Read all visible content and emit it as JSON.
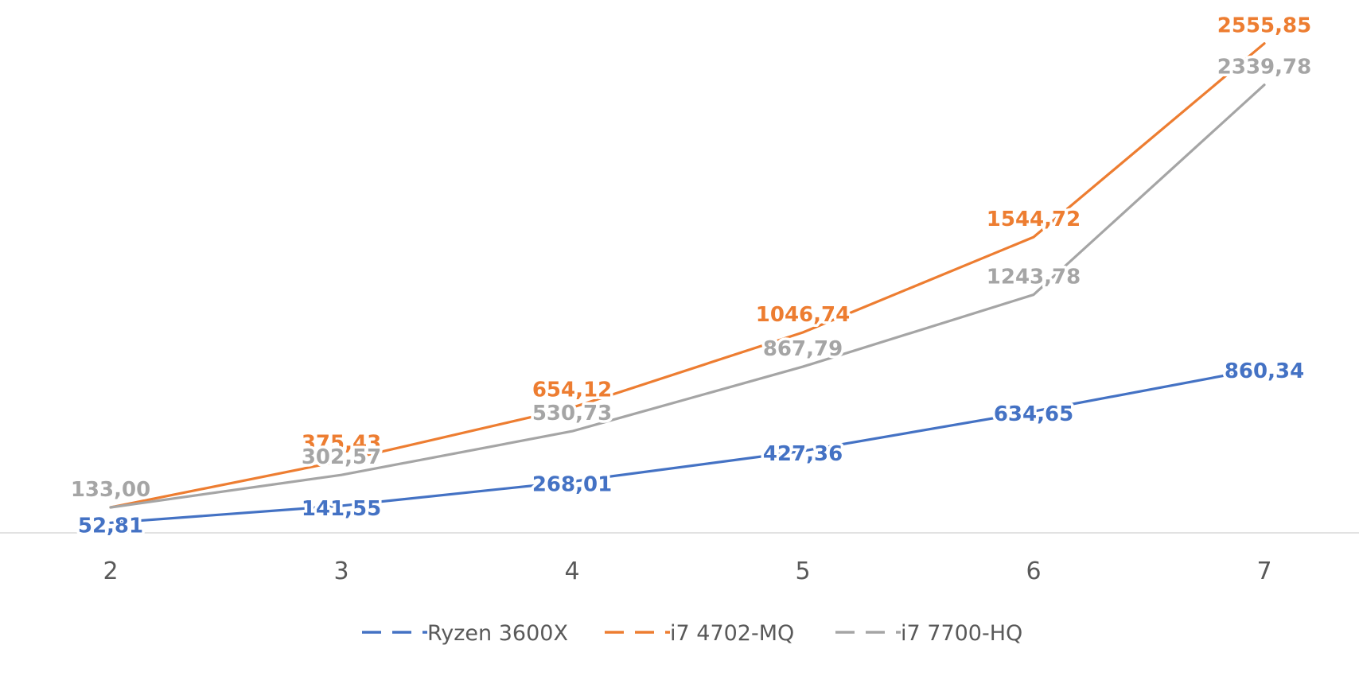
{
  "chart_data": {
    "type": "line",
    "title": "",
    "xlabel": "",
    "ylabel": "",
    "x": [
      2,
      3,
      4,
      5,
      6,
      7
    ],
    "x_tick_labels": [
      "2",
      "3",
      "4",
      "5",
      "6",
      "7"
    ],
    "ylim": [
      0,
      2700
    ],
    "y_axis_visible": false,
    "grid": false,
    "legend_position": "bottom",
    "series": [
      {
        "name": "Ryzen 3600X",
        "color": "#4472C4",
        "values": [
          52.81,
          141.55,
          268.01,
          427.36,
          634.65,
          860.34
        ],
        "labels": [
          "52,81",
          "141,55",
          "268,01",
          "427,36",
          "634,65",
          "860,34"
        ]
      },
      {
        "name": "i7 4702-MQ",
        "color": "#ED7D31",
        "values": [
          133.0,
          375.43,
          654.12,
          1046.74,
          1544.72,
          2555.85
        ],
        "labels": [
          "133,00",
          "375,43",
          "654,12",
          "1046,74",
          "1544,72",
          "2555,85"
        ]
      },
      {
        "name": "i7 7700-HQ",
        "color": "#A5A5A5",
        "values": [
          133.0,
          302.57,
          530.73,
          867.79,
          1243.78,
          2339.78
        ],
        "labels": [
          "133,00",
          "302,57",
          "530,73",
          "867,79",
          "1243,78",
          "2339,78"
        ]
      }
    ]
  }
}
